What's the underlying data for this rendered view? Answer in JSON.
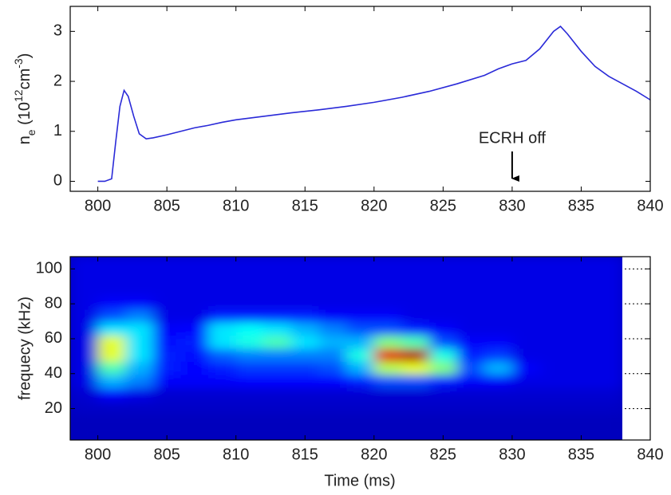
{
  "chart_data": [
    {
      "type": "line",
      "ylabel": {
        "base": "n",
        "sub": "e",
        "pre": " (10",
        "sup1": "12",
        "mid": "cm",
        "sup2": "-3",
        "end": ")"
      },
      "x": [
        800,
        800.5,
        801,
        801.3,
        801.6,
        801.9,
        802.2,
        802.6,
        803,
        803.5,
        804,
        805,
        806,
        807,
        808,
        809,
        810,
        812,
        814,
        816,
        818,
        820,
        822,
        824,
        826,
        828,
        829,
        830,
        831,
        832,
        833,
        833.5,
        834,
        835,
        836,
        837,
        838,
        839,
        840
      ],
      "values": [
        0,
        0,
        0.05,
        0.8,
        1.5,
        1.82,
        1.7,
        1.3,
        0.95,
        0.85,
        0.87,
        0.93,
        1.0,
        1.07,
        1.12,
        1.18,
        1.23,
        1.3,
        1.37,
        1.43,
        1.5,
        1.58,
        1.68,
        1.8,
        1.95,
        2.12,
        2.25,
        2.35,
        2.42,
        2.65,
        3.0,
        3.1,
        2.95,
        2.6,
        2.3,
        2.1,
        1.95,
        1.8,
        1.63
      ],
      "color": "#2a2ad8",
      "xlim": [
        798,
        840
      ],
      "ylim": [
        -0.2,
        3.5
      ],
      "xticks": [
        800,
        805,
        810,
        815,
        820,
        825,
        830,
        835,
        840
      ],
      "yticks": [
        0,
        1,
        2,
        3
      ],
      "annotations": [
        {
          "text": "ECRH off",
          "x": 830
        }
      ]
    },
    {
      "type": "heatmap",
      "xlabel": "Time (ms)",
      "ylabel": "frequecy (kHz)",
      "colormap": "jet",
      "clim": [
        0,
        1
      ],
      "grid": true,
      "x_edges": [
        798,
        800,
        802,
        804,
        806,
        808,
        810,
        812,
        814,
        816,
        818,
        820,
        822,
        824,
        826,
        828,
        830,
        832,
        834,
        836,
        838
      ],
      "y_edges": [
        2,
        9.5,
        17,
        24.5,
        32,
        39.5,
        47,
        54.5,
        62,
        69.5,
        77,
        84.5,
        92,
        99.5,
        107
      ],
      "z": [
        [
          0.06,
          0.06,
          0.06,
          0.06,
          0.06,
          0.06,
          0.06,
          0.06,
          0.06,
          0.06,
          0.06,
          0.06,
          0.06,
          0.06,
          0.06,
          0.06,
          0.06,
          0.06,
          0.06,
          0.06
        ],
        [
          0.06,
          0.06,
          0.06,
          0.06,
          0.06,
          0.06,
          0.06,
          0.06,
          0.06,
          0.06,
          0.06,
          0.06,
          0.06,
          0.06,
          0.06,
          0.06,
          0.06,
          0.06,
          0.06,
          0.06
        ],
        [
          0.07,
          0.07,
          0.07,
          0.07,
          0.07,
          0.07,
          0.07,
          0.07,
          0.07,
          0.07,
          0.07,
          0.07,
          0.07,
          0.07,
          0.07,
          0.07,
          0.07,
          0.07,
          0.07,
          0.07
        ],
        [
          0.08,
          0.12,
          0.1,
          0.08,
          0.08,
          0.08,
          0.08,
          0.08,
          0.08,
          0.08,
          0.08,
          0.08,
          0.08,
          0.08,
          0.08,
          0.08,
          0.08,
          0.08,
          0.08,
          0.08
        ],
        [
          0.1,
          0.3,
          0.25,
          0.12,
          0.12,
          0.12,
          0.13,
          0.13,
          0.13,
          0.13,
          0.15,
          0.2,
          0.2,
          0.15,
          0.12,
          0.12,
          0.1,
          0.1,
          0.1,
          0.1
        ],
        [
          0.1,
          0.45,
          0.3,
          0.15,
          0.13,
          0.15,
          0.18,
          0.18,
          0.18,
          0.2,
          0.3,
          0.55,
          0.6,
          0.5,
          0.2,
          0.3,
          0.12,
          0.1,
          0.1,
          0.1
        ],
        [
          0.1,
          0.6,
          0.35,
          0.15,
          0.14,
          0.22,
          0.25,
          0.25,
          0.25,
          0.25,
          0.4,
          0.9,
          0.95,
          0.4,
          0.15,
          0.18,
          0.1,
          0.1,
          0.1,
          0.1
        ],
        [
          0.1,
          0.6,
          0.35,
          0.14,
          0.15,
          0.35,
          0.4,
          0.45,
          0.35,
          0.3,
          0.3,
          0.5,
          0.45,
          0.2,
          0.12,
          0.12,
          0.1,
          0.1,
          0.1,
          0.1
        ],
        [
          0.1,
          0.35,
          0.35,
          0.12,
          0.13,
          0.35,
          0.38,
          0.35,
          0.3,
          0.25,
          0.2,
          0.2,
          0.15,
          0.12,
          0.1,
          0.1,
          0.1,
          0.1,
          0.1,
          0.1
        ],
        [
          0.1,
          0.2,
          0.25,
          0.1,
          0.1,
          0.15,
          0.15,
          0.15,
          0.15,
          0.12,
          0.12,
          0.12,
          0.1,
          0.1,
          0.1,
          0.1,
          0.1,
          0.1,
          0.1,
          0.1
        ],
        [
          0.1,
          0.12,
          0.12,
          0.1,
          0.1,
          0.1,
          0.1,
          0.1,
          0.1,
          0.1,
          0.1,
          0.1,
          0.1,
          0.1,
          0.1,
          0.1,
          0.1,
          0.1,
          0.1,
          0.1
        ],
        [
          0.1,
          0.1,
          0.1,
          0.1,
          0.1,
          0.1,
          0.1,
          0.1,
          0.1,
          0.1,
          0.1,
          0.1,
          0.1,
          0.1,
          0.1,
          0.1,
          0.1,
          0.1,
          0.1,
          0.1
        ],
        [
          0.1,
          0.1,
          0.1,
          0.1,
          0.1,
          0.1,
          0.1,
          0.1,
          0.1,
          0.1,
          0.1,
          0.1,
          0.1,
          0.1,
          0.1,
          0.1,
          0.1,
          0.1,
          0.1,
          0.1
        ],
        [
          0.1,
          0.1,
          0.1,
          0.1,
          0.1,
          0.1,
          0.1,
          0.1,
          0.1,
          0.1,
          0.1,
          0.1,
          0.1,
          0.1,
          0.1,
          0.1,
          0.1,
          0.1,
          0.1,
          0.1
        ]
      ],
      "xlim": [
        798,
        840
      ],
      "ylim": [
        2,
        107
      ],
      "xticks": [
        800,
        805,
        810,
        815,
        820,
        825,
        830,
        835,
        840
      ],
      "yticks": [
        20,
        40,
        60,
        80,
        100
      ]
    }
  ]
}
